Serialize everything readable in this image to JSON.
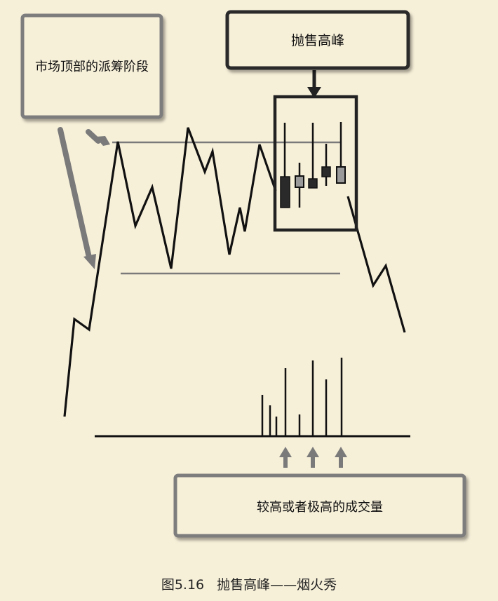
{
  "annotations": {
    "distribution_label": "市场顶部的派筹阶段",
    "selling_climax_label": "抛售高峰",
    "volume_label": "较高或者极高的成交量"
  },
  "caption": {
    "figure_number": "图5.16",
    "title": "抛售高峰——烟火秀"
  },
  "colors": {
    "background": "#f7f0d9",
    "price_line": "#111111",
    "arrow_gray": "#7a7a7a",
    "candle_dark": "#2a2a2a",
    "candle_light": "#9a9a9a",
    "box_fill": "#f7f0d9",
    "box_border_light": "#7d7d7d",
    "box_border_dark": "#2a2a2a"
  }
}
